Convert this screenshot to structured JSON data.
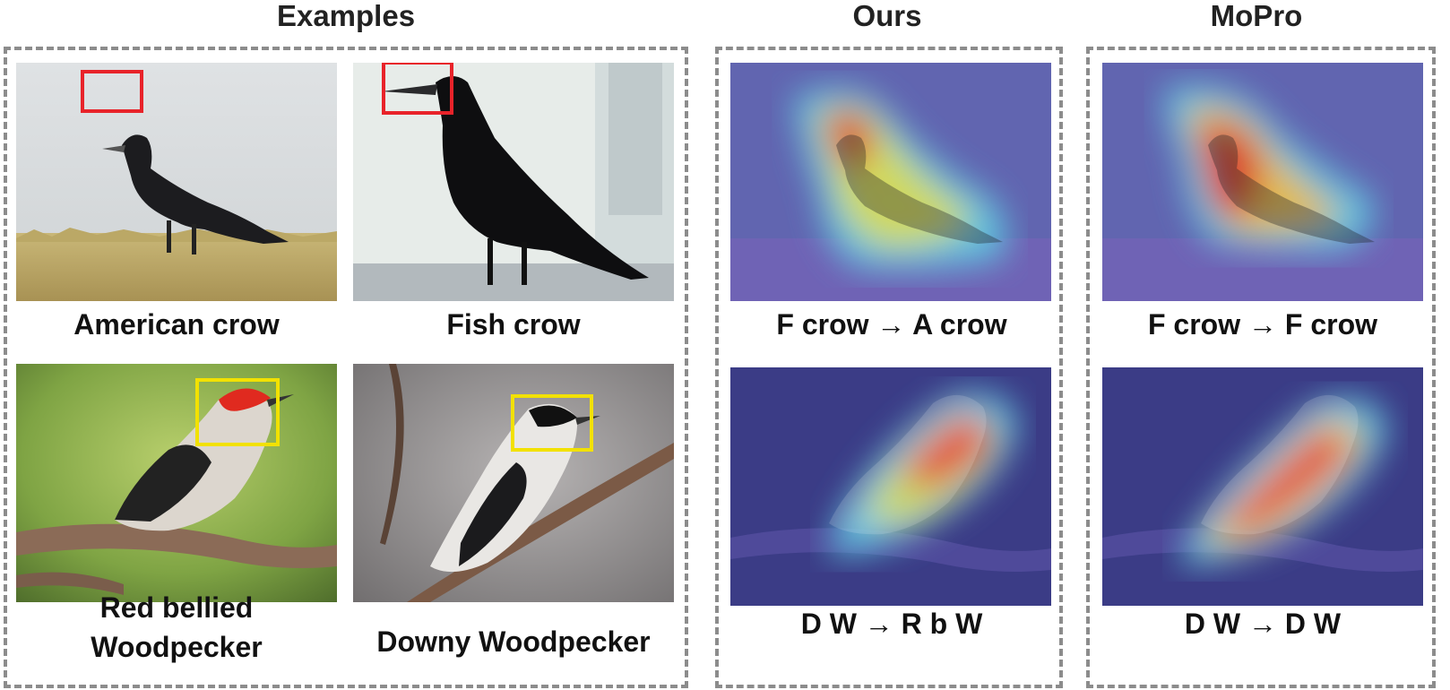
{
  "headings": {
    "examples": "Examples",
    "ours": "Ours",
    "mopro": "MoPro"
  },
  "examples": {
    "american_crow": "American crow",
    "fish_crow": "Fish crow",
    "red_bellied_line1": "Red bellied",
    "red_bellied_line2": "Woodpecker",
    "downy_woodpecker": "Downy Woodpecker"
  },
  "ours": {
    "crow_result": "F crow → A crow",
    "woodpecker_result": "D W → R b W"
  },
  "mopro": {
    "crow_result": "F crow → F crow",
    "woodpecker_result": "D W → D W"
  },
  "colors": {
    "panel_border": "#8c8c8c",
    "crow_box": "#e8232a",
    "woodpecker_box": "#f2e100"
  }
}
